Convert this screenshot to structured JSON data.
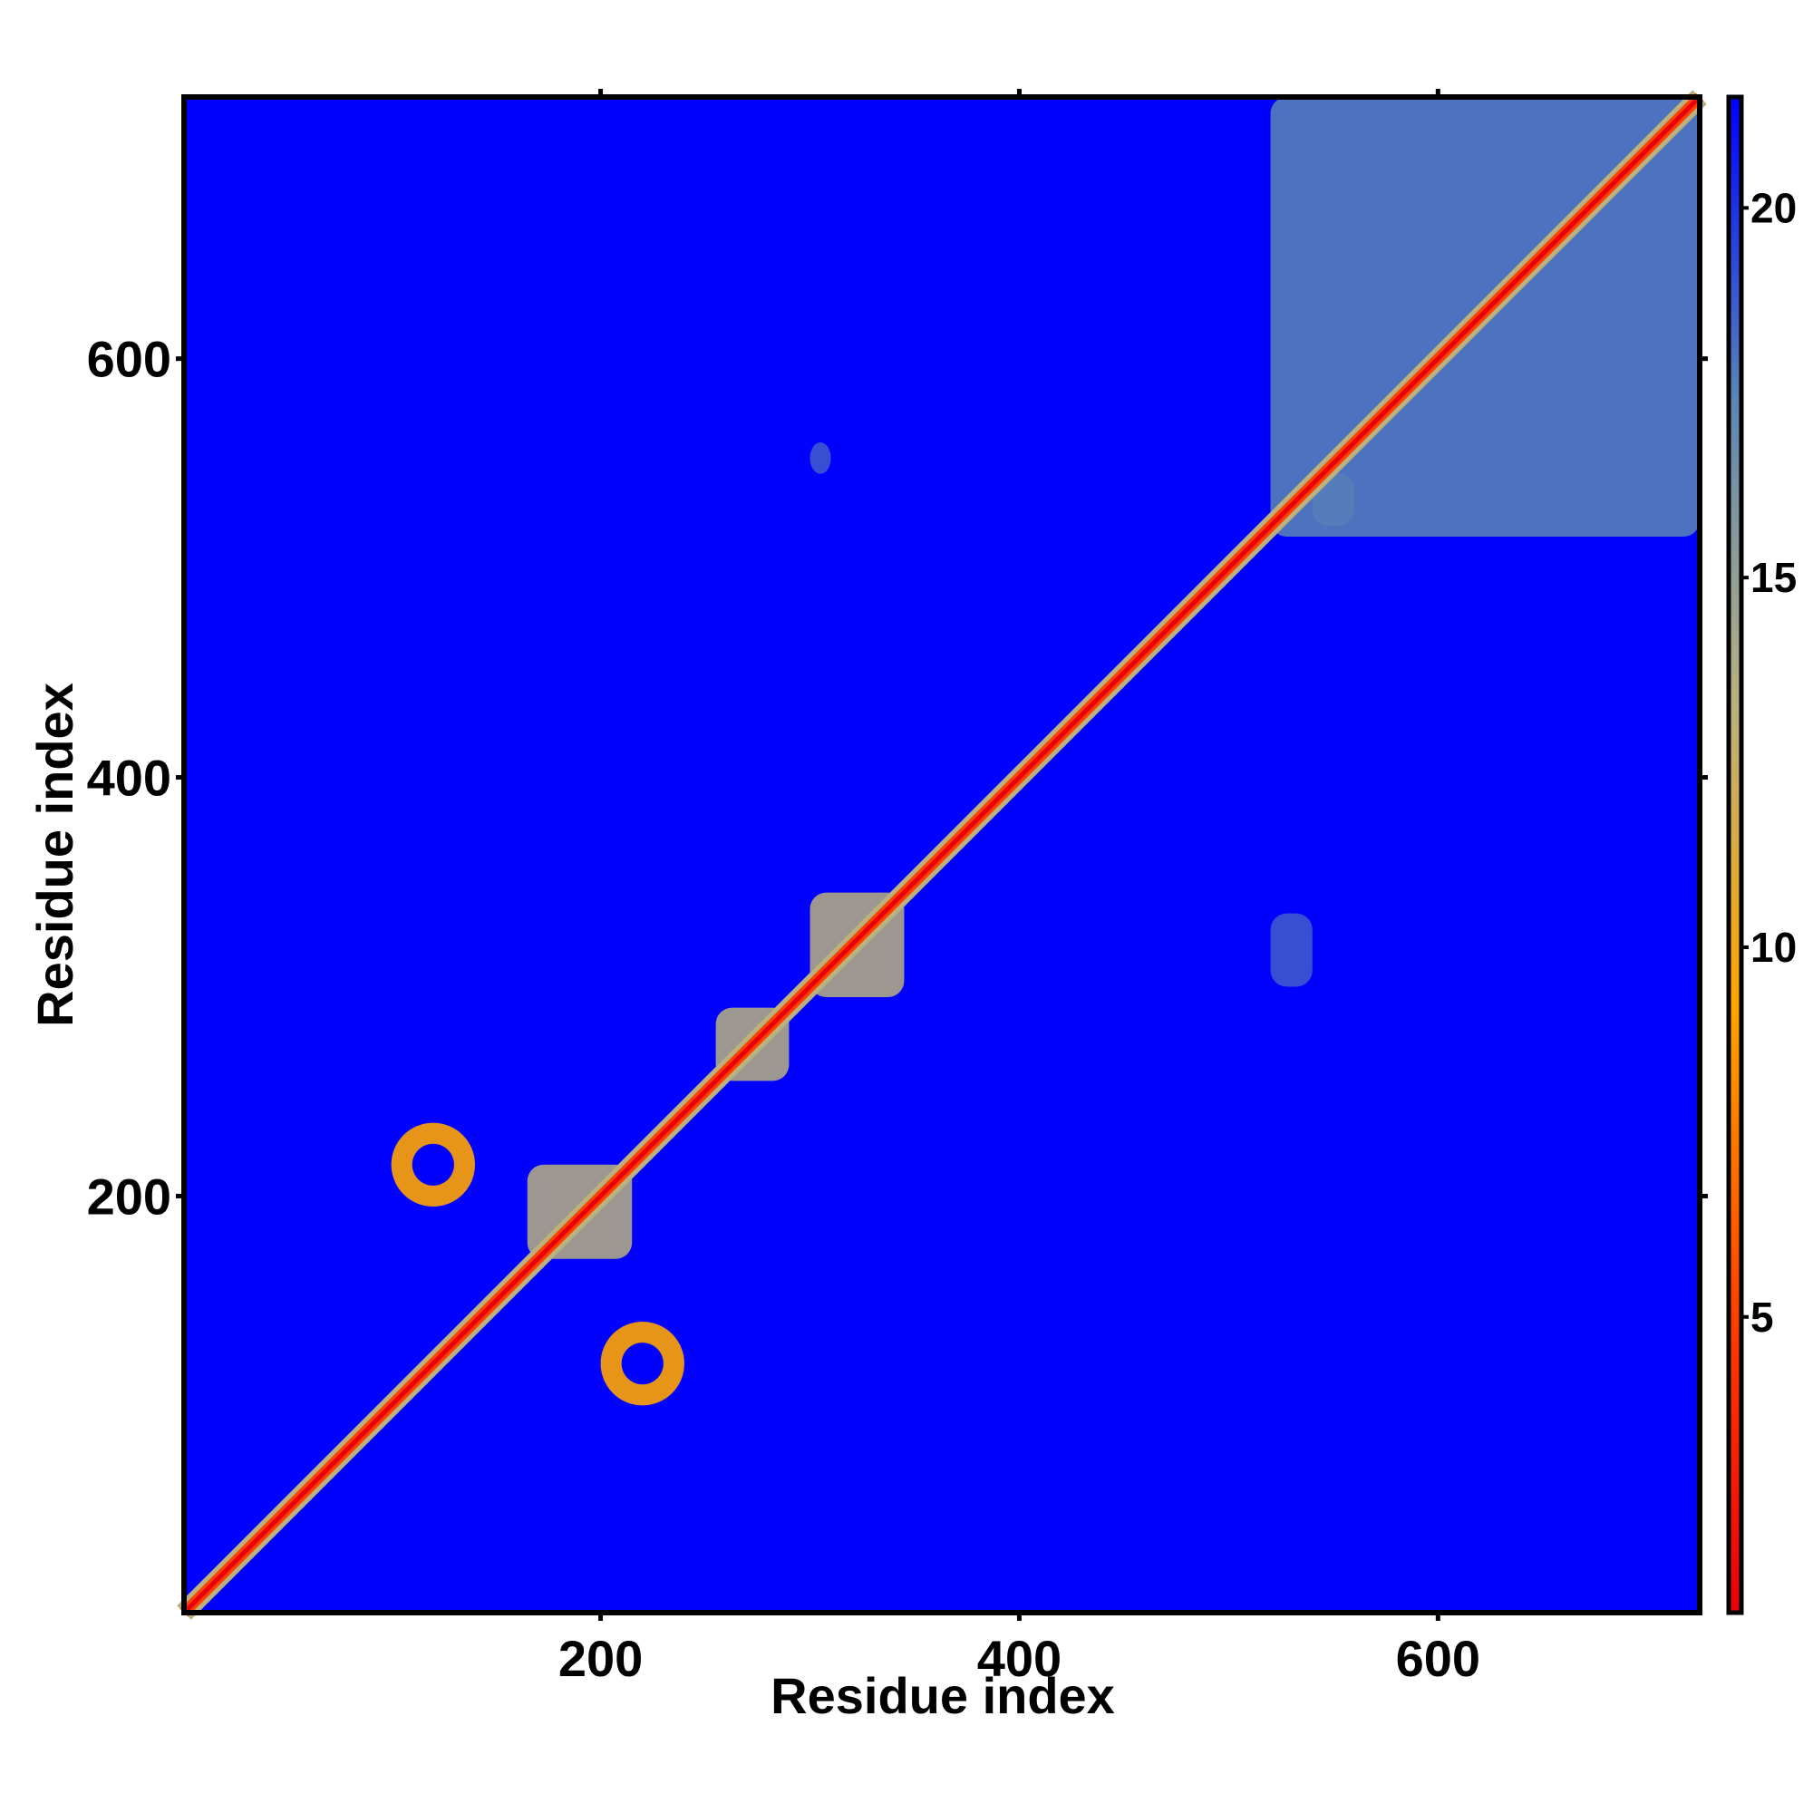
{
  "chart_data": {
    "type": "heatmap",
    "title": "",
    "xlabel": "Residue index",
    "ylabel": "Residue index",
    "xlim": [
      1,
      725
    ],
    "ylim": [
      1,
      725
    ],
    "x_ticks": [
      200,
      400,
      600
    ],
    "y_ticks": [
      200,
      400,
      600
    ],
    "grid": false,
    "colorbar": {
      "ticks": [
        5,
        10,
        15,
        20
      ],
      "range": [
        1,
        21.5
      ],
      "colors": [
        "#e8000b",
        "#ff4000",
        "#ffa500",
        "#b9b17e",
        "#5b86b5",
        "#0000ff"
      ]
    },
    "value_range_note_min": 1,
    "background_value": 21.5,
    "description_values": {
      "diagonal_value": 2,
      "near_diagonal_value": 7
    },
    "contact_regions": [
      {
        "x": [
          1,
          725
        ],
        "y": [
          1,
          725
        ],
        "kind": "diagonal"
      },
      {
        "x": [
          520,
          725
        ],
        "y": [
          515,
          725
        ],
        "kind": "dense_block",
        "value": 17
      },
      {
        "x": [
          100,
          140
        ],
        "y": [
          195,
          235
        ],
        "kind": "contact_ring",
        "value": 10
      },
      {
        "x": [
          200,
          240
        ],
        "y": [
          100,
          140
        ],
        "kind": "contact_ring",
        "value": 10
      },
      {
        "x": [
          300,
          345
        ],
        "y": [
          295,
          345
        ],
        "kind": "local_block",
        "value": 13
      },
      {
        "x": [
          165,
          215
        ],
        "y": [
          170,
          215
        ],
        "kind": "local_block",
        "value": 12
      },
      {
        "x": [
          255,
          290
        ],
        "y": [
          255,
          290
        ],
        "kind": "local_block",
        "value": 14
      },
      {
        "x": [
          540,
          560
        ],
        "y": [
          520,
          545
        ],
        "kind": "sparse",
        "value": 17
      },
      {
        "x": [
          300,
          310
        ],
        "y": [
          545,
          560
        ],
        "kind": "sparse",
        "value": 17
      },
      {
        "x": [
          520,
          540
        ],
        "y": [
          300,
          335
        ],
        "kind": "sparse",
        "value": 17
      }
    ]
  }
}
